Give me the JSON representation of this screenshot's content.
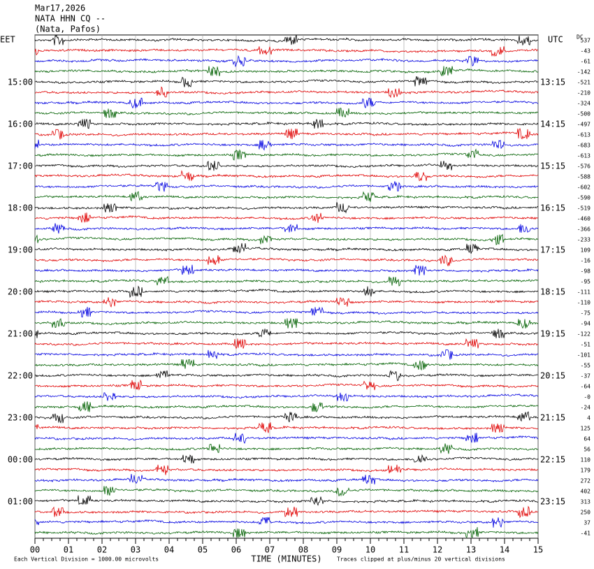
{
  "header": {
    "date": "Mar17,2026",
    "station": "NATA HHN CQ --",
    "location": "(Nata, Pafos)"
  },
  "left_axis": {
    "title": "EET",
    "labels": [
      "15:00",
      "16:00",
      "17:00",
      "18:00",
      "19:00",
      "20:00",
      "21:00",
      "22:00",
      "23:00",
      "00:00",
      "01:00"
    ]
  },
  "right_axis": {
    "title": "UTC",
    "labels": [
      "13:15",
      "14:15",
      "15:15",
      "16:15",
      "17:15",
      "18:15",
      "19:15",
      "20:15",
      "21:15",
      "22:15",
      "23:15"
    ]
  },
  "dc": {
    "title": "DC",
    "values": [
      "537",
      "-43",
      "-61",
      "-142",
      "-521",
      "-210",
      "-324",
      "-500",
      "-497",
      "-613",
      "-683",
      "-613",
      "-576",
      "-588",
      "-602",
      "-590",
      "-519",
      "-460",
      "-366",
      "-233",
      "109",
      "-16",
      "-98",
      "-95",
      "-111",
      "-110",
      "-75",
      "-94",
      "-122",
      "-51",
      "-101",
      "-55",
      "-37",
      "-64",
      "-0",
      "-24",
      "4",
      "125",
      "64",
      "56",
      "110",
      "179",
      "272",
      "402",
      "313",
      "250",
      "37",
      "-41"
    ]
  },
  "x_axis": {
    "title": "TIME (MINUTES)",
    "labels": [
      "00",
      "01",
      "02",
      "03",
      "04",
      "05",
      "06",
      "07",
      "08",
      "09",
      "10",
      "11",
      "12",
      "13",
      "14",
      "15"
    ]
  },
  "footer": {
    "scale": "Each Vertical Division = 1000.00 microvolts",
    "clip": "Traces clipped at plus/minus 20 vertical divisions"
  },
  "trace_colors": [
    "#000000",
    "#e00000",
    "#0000e0",
    "#006000"
  ]
}
